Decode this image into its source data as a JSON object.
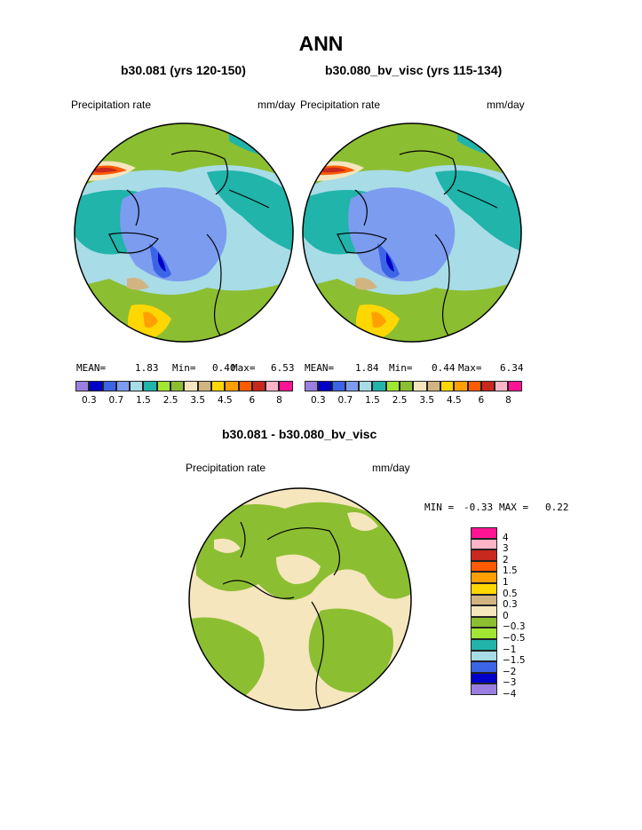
{
  "title": "ANN",
  "left_panel": {
    "subtitle": "b30.081 (yrs 120-150)",
    "variable": "Precipitation rate",
    "units": "mm/day",
    "mean_label": "MEAN=",
    "mean": "1.83",
    "min_label": "Min=",
    "min": "0.40",
    "max_label": "Max=",
    "max": "6.53"
  },
  "right_panel": {
    "subtitle": "b30.080_bv_visc (yrs 115-134)",
    "variable": "Precipitation rate",
    "units": "mm/day",
    "mean_label": "MEAN=",
    "mean": "1.84",
    "min_label": "Min=",
    "min": "0.44",
    "max_label": "Max=",
    "max": "6.34"
  },
  "abs_colorbar": {
    "colors": [
      "#9b7fe0",
      "#0000c8",
      "#3c64e6",
      "#7c9cf0",
      "#a8dce6",
      "#20b4aa",
      "#a0e632",
      "#8cbe32",
      "#f5e6be",
      "#d2b482",
      "#ffd700",
      "#ffa000",
      "#ff5a00",
      "#c8281e",
      "#ffb4c8",
      "#ff1493"
    ],
    "tick_labels": [
      "0.3",
      "0.7",
      "1.5",
      "2.5",
      "3.5",
      "4.5",
      "6",
      "8"
    ]
  },
  "diff_panel": {
    "subtitle": "b30.081 - b30.080_bv_visc",
    "variable": "Precipitation rate",
    "units": "mm/day",
    "min_label": "MIN =",
    "min": "-0.33",
    "max_label": "MAX =",
    "max": "0.22"
  },
  "diff_colorbar": {
    "colors": [
      "#ff1493",
      "#ffb4c8",
      "#c8281e",
      "#ff5a00",
      "#ffa000",
      "#ffd700",
      "#d2b482",
      "#f5e6be",
      "#8cbe32",
      "#a0e632",
      "#20b4aa",
      "#a8dce6",
      "#3c64e6",
      "#0000c8",
      "#9b7fe0"
    ],
    "tick_labels": [
      "4",
      "3",
      "2",
      "1.5",
      "1",
      "0.5",
      "0.3",
      "0",
      "−0.3",
      "−0.5",
      "−1",
      "−1.5",
      "−2",
      "−3",
      "−4"
    ]
  }
}
